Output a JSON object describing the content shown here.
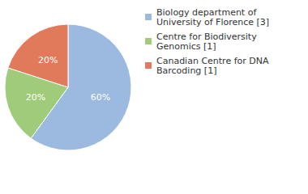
{
  "chart_data": {
    "type": "pie",
    "categories": [
      "Biology department of University of Florence [3]",
      "Centre for Biodiversity Genomics [1]",
      "Canadian Centre for DNA Barcoding [1]"
    ],
    "values": [
      60,
      20,
      20
    ],
    "value_labels": [
      "60%",
      "20%",
      "20%"
    ],
    "colors": [
      "#9cb9e0",
      "#9fcb7a",
      "#e07a5a"
    ],
    "data_labels": true,
    "legend": "top-right"
  }
}
